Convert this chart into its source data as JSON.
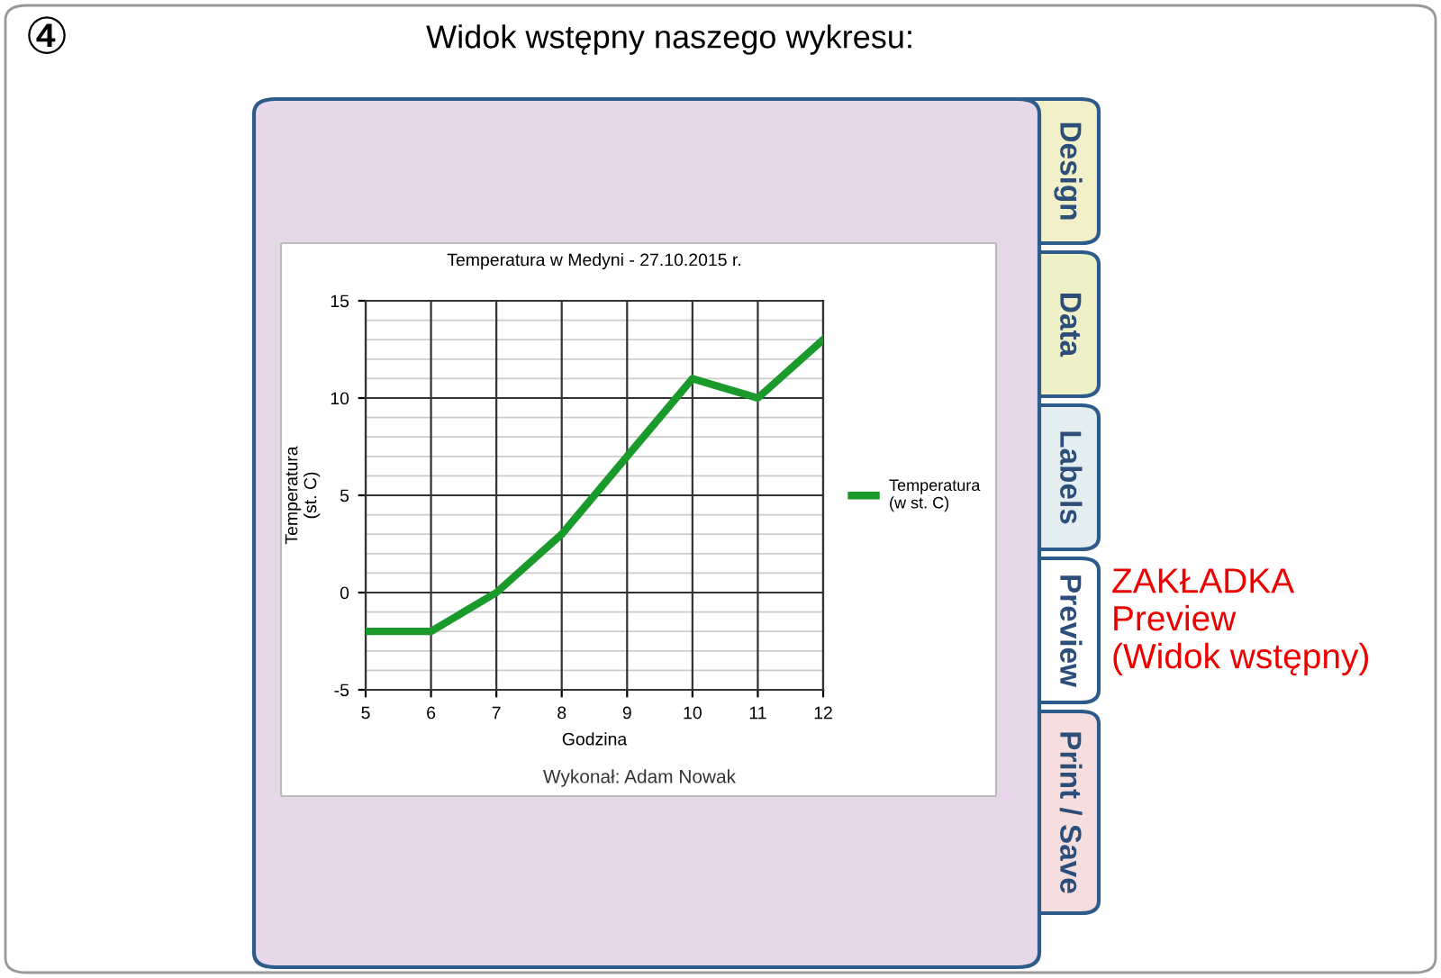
{
  "chart_data": {
    "type": "line",
    "title": "Temperatura w Medyni - 27.10.2015 r.",
    "xlabel": "Godzina",
    "ylabel": "Temperatura\n(st. C)",
    "x": [
      5,
      6,
      7,
      8,
      9,
      10,
      11,
      12
    ],
    "series": [
      {
        "name": "Temperatura\n(w st. C)",
        "color": "#1a9a2a",
        "values": [
          -2,
          -2,
          0,
          3,
          7,
          11,
          10,
          13
        ]
      }
    ],
    "xlim": [
      5,
      12
    ],
    "xticks": [
      5,
      6,
      7,
      8,
      9,
      10,
      11,
      12
    ],
    "ylim": [
      -5,
      15
    ],
    "yticks": [
      -5,
      0,
      5,
      10,
      15
    ],
    "grid": true,
    "legend": "right",
    "marker": "none",
    "line_style": "solid",
    "annotations": [
      "Wykonał: Adam Nowak",
      "④",
      "Widok wstępny naszego wykresu:",
      "Design",
      "Data",
      "Labels",
      "Preview",
      "Print / Save",
      "ZAKŁADKA\nPreview\n(Widok wstępny)"
    ]
  }
}
